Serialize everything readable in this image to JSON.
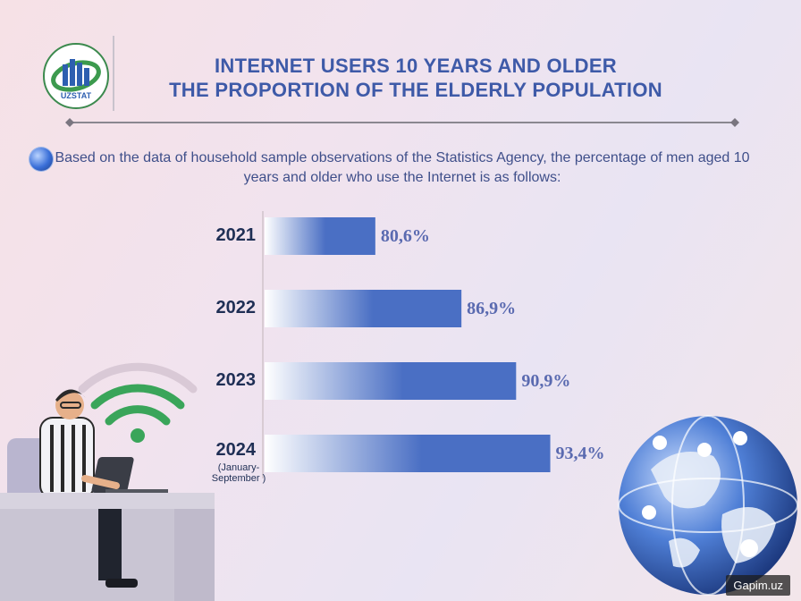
{
  "logo": {
    "text": "UZSTAT"
  },
  "header": {
    "title_line1": "INTERNET USERS 10 YEARS AND OLDER",
    "title_line2": "THE PROPORTION OF THE ELDERLY POPULATION"
  },
  "intro": {
    "text": "Based on the data of household sample observations of the Statistics Agency, the percentage of men aged 10 years and older who use the Internet is as follows:"
  },
  "chart_data": {
    "type": "bar",
    "orientation": "horizontal",
    "categories": [
      "2021",
      "2022",
      "2023",
      "2024"
    ],
    "category_notes": [
      "",
      "",
      "",
      "(January-September  )"
    ],
    "values": [
      80.6,
      86.9,
      90.9,
      93.4
    ],
    "value_labels": [
      "80,6%",
      "86,9%",
      "90,9%",
      "93,4%"
    ],
    "xlim": [
      72.5,
      95
    ],
    "grid": false,
    "bar_color": "#4a6fc4"
  },
  "watermark": {
    "text": "Gapim.uz"
  },
  "colors": {
    "title": "#3e5aa8",
    "text": "#3f4f8a",
    "bar": "#4a6fc4"
  }
}
